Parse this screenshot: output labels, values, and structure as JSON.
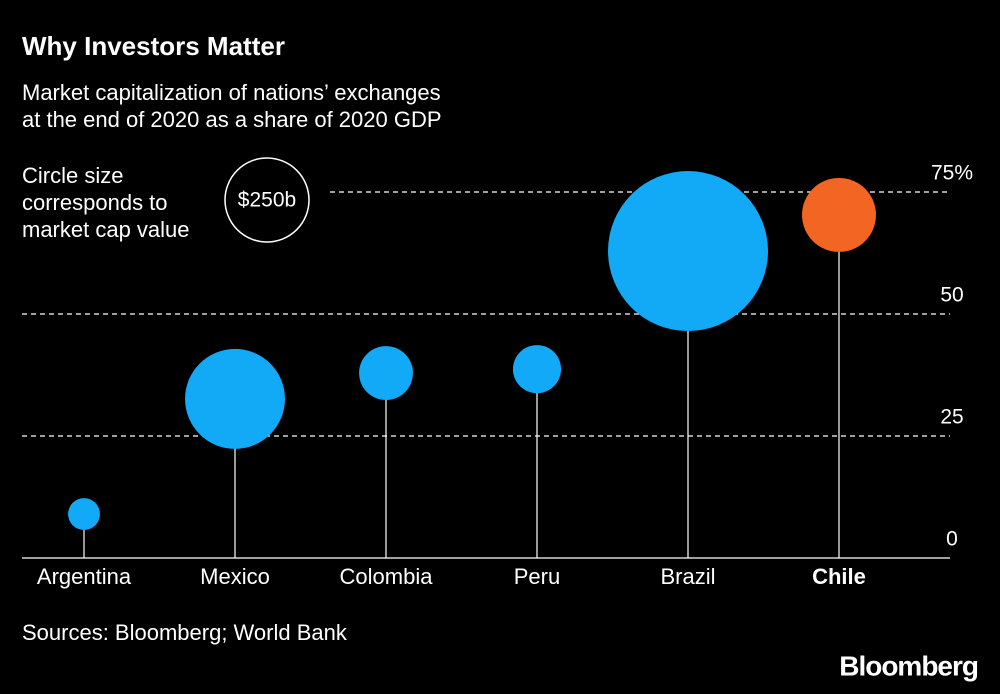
{
  "chart_data": {
    "type": "bubble",
    "title": "Why Investors Matter",
    "subtitle": [
      "Market capitalization of nations’ exchanges",
      "at the end of 2020 as a share of 2020 GDP"
    ],
    "size_note": [
      "Circle size",
      "corresponds to",
      "market cap value"
    ],
    "size_legend": {
      "value": 250,
      "label": "$250b"
    },
    "categories": [
      "Argentina",
      "Mexico",
      "Colombia",
      "Peru",
      "Brazil",
      "Chile"
    ],
    "highlight": "Chile",
    "series": [
      {
        "values": [
          9,
          32.6,
          37.9,
          38.7,
          62.9,
          70.3
        ],
        "sizes": [
          36,
          354,
          103,
          82,
          907,
          194
        ],
        "colors": [
          "#12a9f6",
          "#12a9f6",
          "#12a9f6",
          "#12a9f6",
          "#12a9f6",
          "#f26522"
        ]
      }
    ],
    "ylim": [
      0,
      80
    ],
    "yticks": [
      0,
      25,
      50,
      {
        "value": 75,
        "label": "75%"
      }
    ],
    "grid": true,
    "source": "Sources: Bloomberg; World Bank",
    "brand": "Bloomberg"
  }
}
